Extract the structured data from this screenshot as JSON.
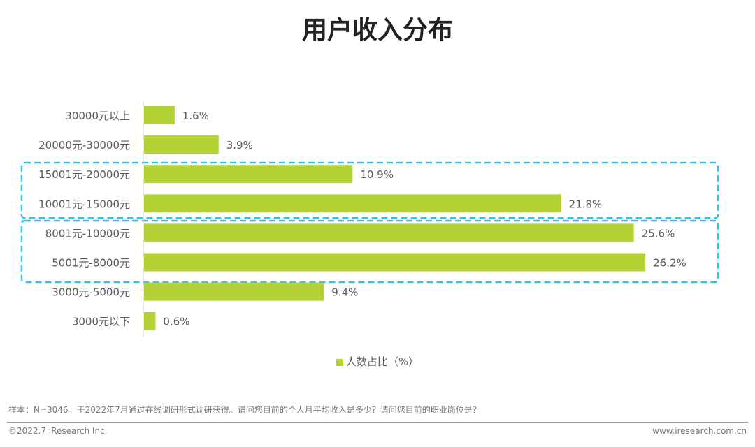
{
  "chart_data": {
    "type": "bar",
    "orientation": "horizontal",
    "title": "用户收入分布",
    "categories": [
      "30000元以上",
      "20000元-30000元",
      "15001元-20000元",
      "10001元-15000元",
      "8001元-10000元",
      "5001元-8000元",
      "3000元-5000元",
      "3000元以下"
    ],
    "series": [
      {
        "name": "人数占比（%）",
        "values": [
          1.6,
          3.9,
          10.9,
          21.8,
          25.6,
          26.2,
          9.4,
          0.6
        ]
      }
    ],
    "data_labels": [
      "1.6%",
      "3.9%",
      "10.9%",
      "21.8%",
      "25.6%",
      "26.2%",
      "9.4%",
      "0.6%"
    ],
    "highlight_groups": [
      [
        "15001元-20000元",
        "10001元-15000元"
      ],
      [
        "8001元-10000元",
        "5001元-8000元"
      ]
    ],
    "legend_position": "bottom",
    "grid": false,
    "colors": {
      "bar": "#b2d235",
      "highlight": "#29c4ef"
    }
  },
  "footer": {
    "note": "样本：N=3046。于2022年7月通过在线调研形式调研获得。请问您目前的个人月平均收入是多少？请问您目前的职业岗位是？",
    "copyright": "©2022.7 iResearch Inc.",
    "website": "www.iresearch.com.cn"
  }
}
